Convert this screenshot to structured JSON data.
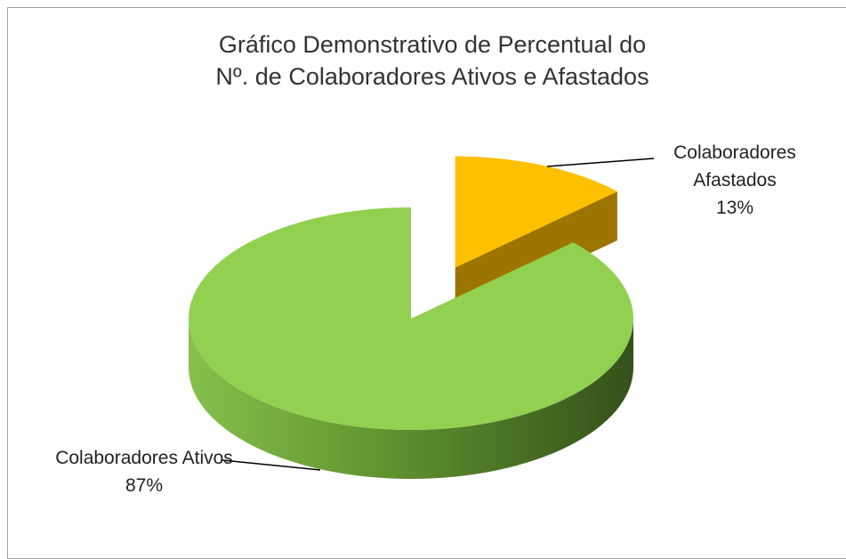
{
  "chart_data": {
    "type": "pie3d",
    "title": "Gráfico Demonstrativo de Percentual do Nº. de Colaboradores Ativos e Afastados",
    "categories": [
      "Colaboradores Ativos",
      "Colaboradores Afastados"
    ],
    "values": [
      87,
      13
    ],
    "value_labels": [
      "87%",
      "13%"
    ],
    "colors": [
      "#92d050",
      "#ffc000"
    ]
  }
}
